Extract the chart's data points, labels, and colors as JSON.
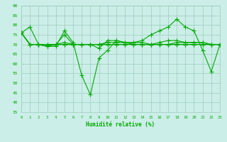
{
  "x": [
    0,
    1,
    2,
    3,
    4,
    5,
    6,
    7,
    8,
    9,
    10,
    11,
    12,
    13,
    14,
    15,
    16,
    17,
    18,
    19,
    20,
    21,
    22,
    23
  ],
  "series": [
    [
      76,
      79,
      70,
      69,
      69,
      77,
      71,
      54,
      44,
      63,
      67,
      72,
      71,
      71,
      72,
      75,
      77,
      79,
      83,
      79,
      77,
      67,
      56,
      70
    ],
    [
      76,
      70,
      70,
      69,
      70,
      75,
      70,
      70,
      70,
      68,
      72,
      72,
      71,
      70,
      70,
      70,
      71,
      72,
      72,
      71,
      71,
      71,
      70,
      70
    ],
    [
      76,
      70,
      70,
      69,
      70,
      71,
      70,
      70,
      70,
      70,
      71,
      71,
      71,
      71,
      71,
      70,
      70,
      70,
      71,
      71,
      71,
      71,
      70,
      70
    ],
    [
      76,
      70,
      70,
      70,
      70,
      70,
      70,
      70,
      70,
      70,
      70,
      70,
      70,
      70,
      70,
      70,
      70,
      70,
      70,
      70,
      70,
      70,
      70,
      70
    ],
    [
      76,
      70,
      70,
      70,
      70,
      70,
      70,
      70,
      70,
      70,
      70,
      70,
      70,
      70,
      70,
      70,
      70,
      70,
      70,
      70,
      70,
      70,
      70,
      70
    ]
  ],
  "line_color": "#00aa00",
  "background_color": "#cceee8",
  "grid_color": "#99ccbb",
  "xlabel": "Humidité relative (%)",
  "ylim": [
    35,
    90
  ],
  "xlim": [
    0,
    23
  ],
  "yticks": [
    35,
    40,
    45,
    50,
    55,
    60,
    65,
    70,
    75,
    80,
    85,
    90
  ],
  "xticks": [
    0,
    1,
    2,
    3,
    4,
    5,
    6,
    7,
    8,
    9,
    10,
    11,
    12,
    13,
    14,
    15,
    16,
    17,
    18,
    19,
    20,
    21,
    22,
    23
  ],
  "marker": "+",
  "linewidth": 0.8,
  "markersize": 4.0
}
